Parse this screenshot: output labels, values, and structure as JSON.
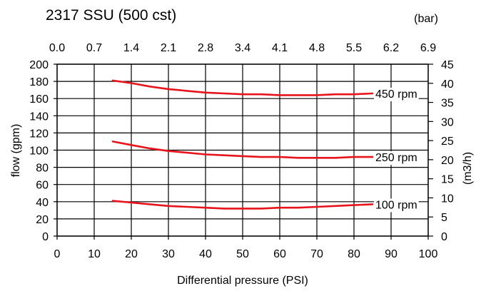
{
  "chart_data": {
    "type": "line",
    "title": "2317 SSU (500 cst)",
    "xlabel": "Differential pressure (PSI)",
    "ylabel": "flow (gpm)",
    "y2label": "(m3/h)",
    "x2label": "(bar)",
    "xlim": [
      0,
      100
    ],
    "ylim": [
      0,
      200
    ],
    "y2lim": [
      0,
      45
    ],
    "grid": true,
    "x_ticks": [
      "0",
      "10",
      "20",
      "30",
      "40",
      "50",
      "60",
      "70",
      "80",
      "90",
      "100"
    ],
    "y_ticks": [
      "0",
      "20",
      "40",
      "60",
      "80",
      "100",
      "120",
      "140",
      "160",
      "180",
      "200"
    ],
    "x2_ticks": [
      "0.0",
      "0.7",
      "1.4",
      "2.1",
      "2.8",
      "3.4",
      "4.1",
      "4.8",
      "5.5",
      "6.2",
      "6.9"
    ],
    "y2_ticks": [
      "0",
      "5",
      "10",
      "15",
      "20",
      "25",
      "30",
      "35",
      "40",
      "45"
    ],
    "series_color": "#e8141c",
    "series": [
      {
        "name": "450 rpm",
        "x": [
          15,
          20,
          25,
          30,
          35,
          40,
          45,
          50,
          55,
          60,
          65,
          70,
          75,
          80,
          85
        ],
        "y": [
          181,
          178,
          174,
          171,
          169,
          167,
          166,
          165,
          165,
          164,
          164,
          164,
          165,
          165,
          166
        ]
      },
      {
        "name": "250 rpm",
        "x": [
          15,
          20,
          25,
          30,
          35,
          40,
          45,
          50,
          55,
          60,
          65,
          70,
          75,
          80,
          85
        ],
        "y": [
          110,
          106,
          102,
          99,
          97,
          95,
          94,
          93,
          92,
          92,
          91,
          91,
          91,
          92,
          92
        ]
      },
      {
        "name": "100 rpm",
        "x": [
          15,
          20,
          25,
          30,
          35,
          40,
          45,
          50,
          55,
          60,
          65,
          70,
          75,
          80,
          85
        ],
        "y": [
          41,
          39,
          37,
          35,
          34,
          33,
          32,
          32,
          32,
          33,
          33,
          34,
          35,
          36,
          37
        ]
      }
    ]
  }
}
